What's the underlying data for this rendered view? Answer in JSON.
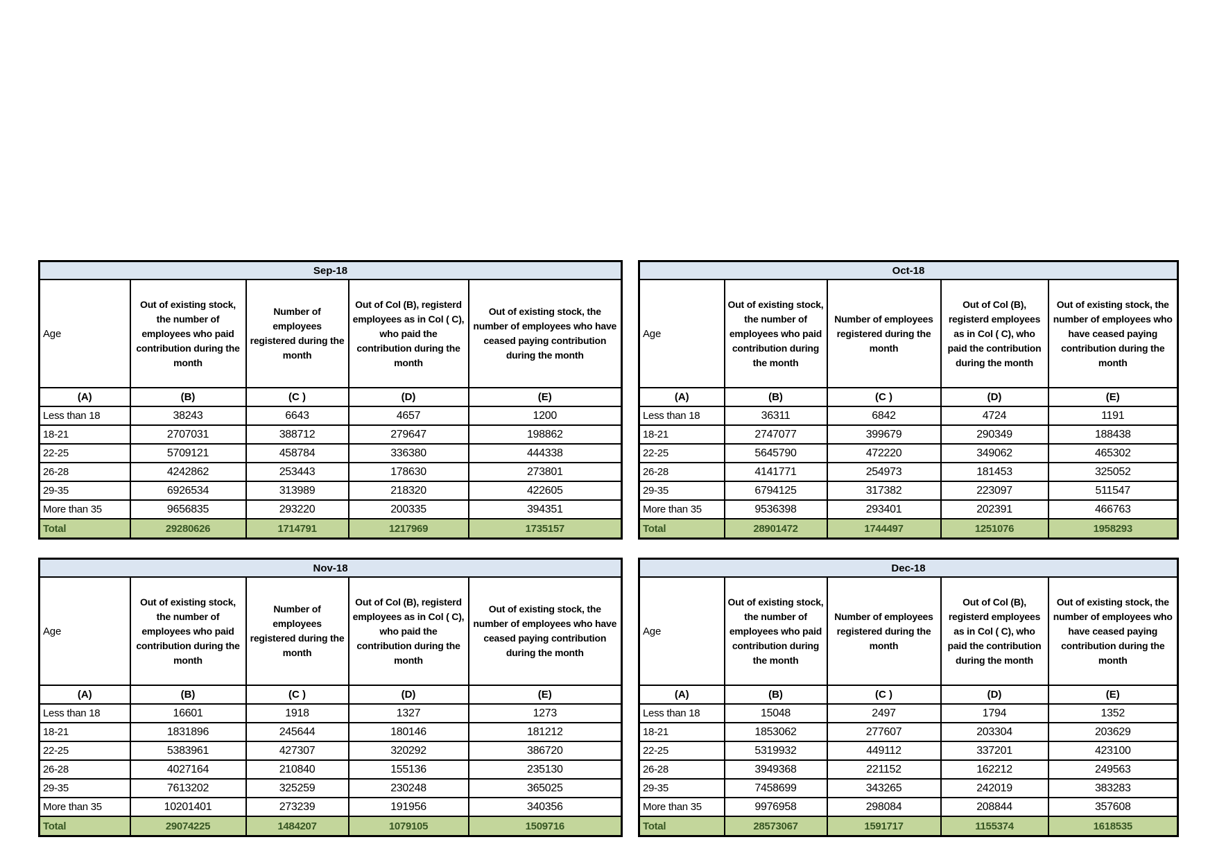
{
  "colors": {
    "title_bg": "#dbe5f1",
    "total_bg": "#c3d69b",
    "total_text": "#375623",
    "border": "#000000",
    "page_bg": "#ffffff"
  },
  "column_headers": {
    "age": "Age",
    "b": "Out of existing stock, the number of employees who paid contribution during the month",
    "c": "Number of employees registered during the month",
    "d": "Out of Col (B), registerd employees as in Col ( C), who paid the contribution during the month",
    "e": "Out of existing stock, the number of  employees  who have ceased paying contribution during the month"
  },
  "letter_row": [
    "(A)",
    "(B)",
    "(C )",
    "(D)",
    "(E)"
  ],
  "tables": [
    {
      "title": "Sep-18",
      "data_rows": [
        [
          "Less than 18",
          "38243",
          "6643",
          "4657",
          "1200"
        ],
        [
          "18-21",
          "2707031",
          "388712",
          "279647",
          "198862"
        ],
        [
          "22-25",
          "5709121",
          "458784",
          "336380",
          "444338"
        ],
        [
          "26-28",
          "4242862",
          "253443",
          "178630",
          "273801"
        ],
        [
          "29-35",
          "6926534",
          "313989",
          "218320",
          "422605"
        ],
        [
          "More than 35",
          "9656835",
          "293220",
          "200335",
          "394351"
        ]
      ],
      "total_row": [
        "Total",
        "29280626",
        "1714791",
        "1217969",
        "1735157"
      ]
    },
    {
      "title": "Oct-18",
      "data_rows": [
        [
          "Less than 18",
          "36311",
          "6842",
          "4724",
          "1191"
        ],
        [
          "18-21",
          "2747077",
          "399679",
          "290349",
          "188438"
        ],
        [
          "22-25",
          "5645790",
          "472220",
          "349062",
          "465302"
        ],
        [
          "26-28",
          "4141771",
          "254973",
          "181453",
          "325052"
        ],
        [
          "29-35",
          "6794125",
          "317382",
          "223097",
          "511547"
        ],
        [
          "More than 35",
          "9536398",
          "293401",
          "202391",
          "466763"
        ]
      ],
      "total_row": [
        "Total",
        "28901472",
        "1744497",
        "1251076",
        "1958293"
      ]
    },
    {
      "title": "Nov-18",
      "data_rows": [
        [
          "Less than 18",
          "16601",
          "1918",
          "1327",
          "1273"
        ],
        [
          "18-21",
          "1831896",
          "245644",
          "180146",
          "181212"
        ],
        [
          "22-25",
          "5383961",
          "427307",
          "320292",
          "386720"
        ],
        [
          "26-28",
          "4027164",
          "210840",
          "155136",
          "235130"
        ],
        [
          "29-35",
          "7613202",
          "325259",
          "230248",
          "365025"
        ],
        [
          "More than 35",
          "10201401",
          "273239",
          "191956",
          "340356"
        ]
      ],
      "total_row": [
        "Total",
        "29074225",
        "1484207",
        "1079105",
        "1509716"
      ]
    },
    {
      "title": "Dec-18",
      "data_rows": [
        [
          "Less than 18",
          "15048",
          "2497",
          "1794",
          "1352"
        ],
        [
          "18-21",
          "1853062",
          "277607",
          "203304",
          "203629"
        ],
        [
          "22-25",
          "5319932",
          "449112",
          "337201",
          "423100"
        ],
        [
          "26-28",
          "3949368",
          "221152",
          "162212",
          "249563"
        ],
        [
          "29-35",
          "7458699",
          "343265",
          "242019",
          "383283"
        ],
        [
          "More than 35",
          "9976958",
          "298084",
          "208844",
          "357608"
        ]
      ],
      "total_row": [
        "Total",
        "28573067",
        "1591717",
        "1155374",
        "1618535"
      ]
    }
  ]
}
